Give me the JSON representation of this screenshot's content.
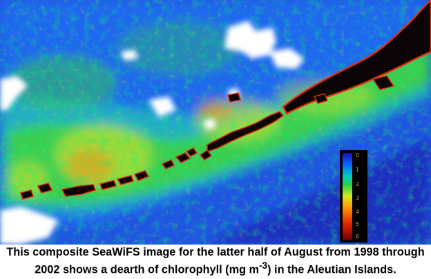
{
  "caption": {
    "part1": "This composite SeaWiFS image for the latter half of August from 1998 through 2002 shows a dearth of chlorophyll (mg m",
    "superscript": "-3",
    "part2": ") in the Aleutian Islands."
  },
  "colorbar": {
    "labels": [
      "0",
      "1",
      "2",
      "3",
      "4",
      "5",
      "6"
    ],
    "colors": [
      "#1a0fb0",
      "#0a5cff",
      "#00c8c8",
      "#20d050",
      "#d8e820",
      "#ff9000",
      "#e02000",
      "#700000"
    ]
  },
  "palette": {
    "ocean_deep": "#1e2fc0",
    "ocean_mid": "#1f6af0",
    "cyan": "#21c3b7",
    "green": "#3fd43a",
    "yellow": "#e3e62a",
    "orange": "#ff8c10",
    "red": "#d42a10",
    "land": "#0a0406",
    "cloud": "#ffffff"
  }
}
